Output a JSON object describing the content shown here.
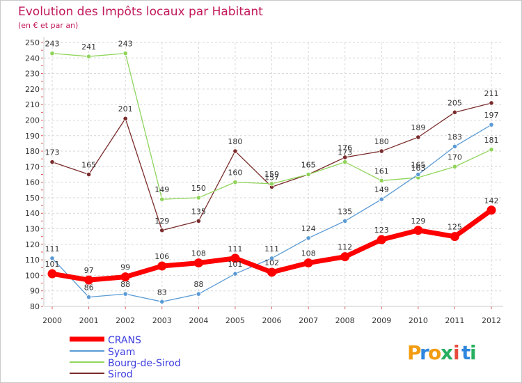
{
  "title": "Evolution des Impôts locaux par Habitant",
  "subtitle": "(en € et par an)",
  "logo": {
    "letters": [
      "P",
      "r",
      "o",
      "x",
      "i",
      "t",
      "i"
    ],
    "colors": [
      "#f39c12",
      "#2e86de",
      "#f39c12",
      "#27ae60",
      "#e74c3c",
      "#2e86de",
      "#27ae60"
    ]
  },
  "chart_data": {
    "type": "line",
    "title": "Evolution des Impôts locaux par Habitant",
    "subtitle": "(en € et par an)",
    "xlabel": "",
    "ylabel": "",
    "x": [
      "2000",
      "2001",
      "2002",
      "2003",
      "2004",
      "2005",
      "2006",
      "2007",
      "2008",
      "2009",
      "2010",
      "2011",
      "2012"
    ],
    "ylim": [
      80,
      250
    ],
    "yticks": [
      80,
      90,
      100,
      110,
      120,
      130,
      140,
      150,
      160,
      170,
      180,
      190,
      200,
      210,
      220,
      230,
      240,
      250
    ],
    "grid": true,
    "legend": "bottom-left",
    "series": [
      {
        "name": "CRANS",
        "color": "#ff0000",
        "values": [
          101,
          97,
          99,
          106,
          108,
          111,
          102,
          108,
          112,
          123,
          129,
          125,
          142
        ]
      },
      {
        "name": "Syam",
        "color": "#5b9bd5",
        "values": [
          111,
          86,
          88,
          83,
          88,
          101,
          111,
          124,
          135,
          149,
          165,
          183,
          197
        ]
      },
      {
        "name": "Bourg-de-Sirod",
        "color": "#8fd45a",
        "values": [
          243,
          241,
          243,
          149,
          150,
          160,
          159,
          165,
          173,
          161,
          163,
          170,
          181
        ]
      },
      {
        "name": "Sirod",
        "color": "#7b2c2c",
        "values": [
          173,
          165,
          201,
          129,
          135,
          180,
          157,
          165,
          176,
          180,
          189,
          205,
          211
        ]
      }
    ]
  }
}
